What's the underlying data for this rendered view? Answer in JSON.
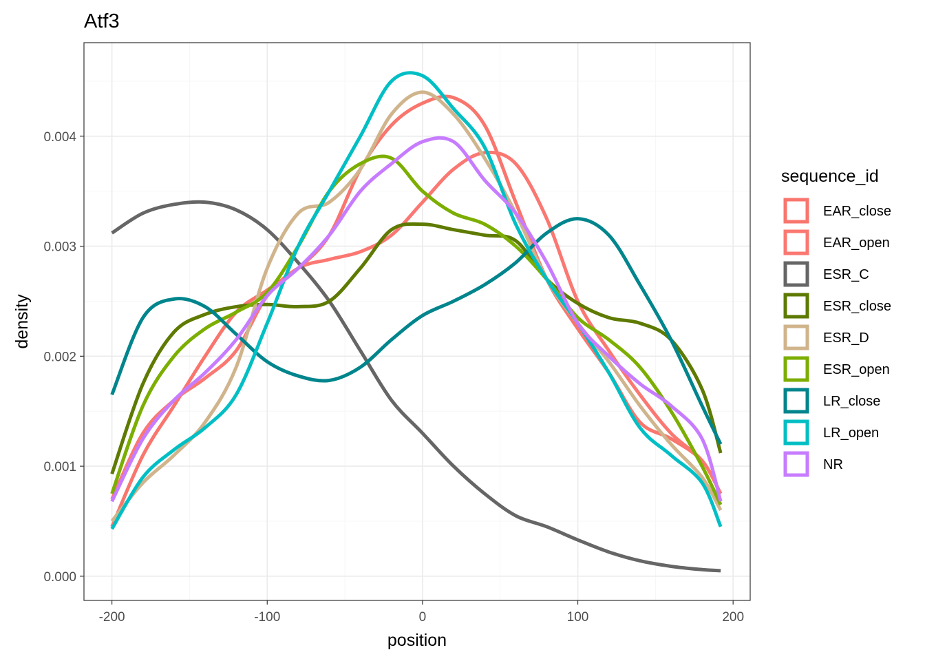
{
  "chart_data": {
    "type": "line",
    "title": "Atf3",
    "xlabel": "position",
    "ylabel": "density",
    "xlim": [
      -218,
      211
    ],
    "ylim": [
      -0.00022,
      0.00485
    ],
    "x_ticks": [
      -200,
      -100,
      0,
      100,
      200
    ],
    "x_tick_labels": [
      "-200",
      "-100",
      "0",
      "100",
      "200"
    ],
    "y_ticks": [
      0.0,
      0.001,
      0.002,
      0.003,
      0.004
    ],
    "y_tick_labels": [
      "0.000",
      "0.001",
      "0.002",
      "0.003",
      "0.004"
    ],
    "grid": true,
    "legend_title": "sequence_id",
    "legend_position": "right",
    "x": [
      -200,
      -180,
      -160,
      -140,
      -120,
      -100,
      -80,
      -60,
      -40,
      -20,
      0,
      20,
      40,
      60,
      80,
      100,
      120,
      140,
      160,
      180,
      192
    ],
    "series": [
      {
        "name": "EAR_close",
        "color": "#F8766D",
        "values": [
          0.00045,
          0.0011,
          0.00155,
          0.002,
          0.0024,
          0.0026,
          0.0028,
          0.0031,
          0.0037,
          0.0041,
          0.0043,
          0.00435,
          0.0041,
          0.0034,
          0.0027,
          0.00225,
          0.00185,
          0.0014,
          0.00125,
          0.00105,
          0.00075
        ]
      },
      {
        "name": "EAR_open",
        "color": "#FB7872",
        "values": [
          0.0007,
          0.0013,
          0.0016,
          0.0018,
          0.00205,
          0.00255,
          0.0028,
          0.00288,
          0.00295,
          0.0031,
          0.0034,
          0.0037,
          0.00385,
          0.00375,
          0.00325,
          0.0025,
          0.00205,
          0.00165,
          0.0013,
          0.00105,
          0.00075
        ]
      },
      {
        "name": "ESR_C",
        "color": "#666666",
        "values": [
          0.00312,
          0.0033,
          0.00338,
          0.0034,
          0.00333,
          0.00315,
          0.00285,
          0.0025,
          0.00205,
          0.0016,
          0.0013,
          0.001,
          0.00075,
          0.00055,
          0.00045,
          0.00033,
          0.00022,
          0.00014,
          9e-05,
          6e-05,
          5e-05
        ]
      },
      {
        "name": "ESR_close",
        "color": "#5E7A00",
        "values": [
          0.00093,
          0.00175,
          0.00222,
          0.00238,
          0.00245,
          0.00247,
          0.00245,
          0.0025,
          0.0028,
          0.00315,
          0.0032,
          0.00315,
          0.0031,
          0.00305,
          0.0027,
          0.00248,
          0.00235,
          0.0023,
          0.00215,
          0.0017,
          0.00112
        ]
      },
      {
        "name": "ESR_D",
        "color": "#D0B48C",
        "values": [
          0.0005,
          0.00085,
          0.0011,
          0.0014,
          0.0019,
          0.0028,
          0.0033,
          0.0034,
          0.0037,
          0.0042,
          0.0044,
          0.0042,
          0.0038,
          0.0033,
          0.0027,
          0.0023,
          0.00195,
          0.00155,
          0.0012,
          0.0009,
          0.0006
        ]
      },
      {
        "name": "ESR_open",
        "color": "#7CAE00",
        "values": [
          0.00075,
          0.00155,
          0.002,
          0.00225,
          0.0024,
          0.00258,
          0.003,
          0.0035,
          0.00375,
          0.0038,
          0.0035,
          0.0033,
          0.0032,
          0.003,
          0.0027,
          0.00235,
          0.00215,
          0.0019,
          0.0015,
          0.001,
          0.00065
        ]
      },
      {
        "name": "LR_close",
        "color": "#00858D",
        "values": [
          0.00165,
          0.00235,
          0.00252,
          0.00245,
          0.0022,
          0.00195,
          0.00182,
          0.00178,
          0.0019,
          0.00215,
          0.00237,
          0.0025,
          0.00265,
          0.00285,
          0.00312,
          0.00325,
          0.0031,
          0.00265,
          0.00215,
          0.00155,
          0.0012
        ]
      },
      {
        "name": "LR_open",
        "color": "#00BFC4",
        "values": [
          0.00043,
          0.0009,
          0.00115,
          0.00135,
          0.00165,
          0.0023,
          0.003,
          0.0035,
          0.004,
          0.0045,
          0.00455,
          0.00425,
          0.0039,
          0.0032,
          0.0027,
          0.0023,
          0.00185,
          0.00135,
          0.0011,
          0.00085,
          0.00045
        ]
      },
      {
        "name": "NR",
        "color": "#C77CFF",
        "values": [
          0.00068,
          0.00125,
          0.0016,
          0.00185,
          0.00215,
          0.00255,
          0.0028,
          0.0031,
          0.0035,
          0.00375,
          0.00395,
          0.00395,
          0.0036,
          0.0033,
          0.00285,
          0.0023,
          0.002,
          0.00175,
          0.00155,
          0.00125,
          0.00068
        ]
      }
    ]
  }
}
